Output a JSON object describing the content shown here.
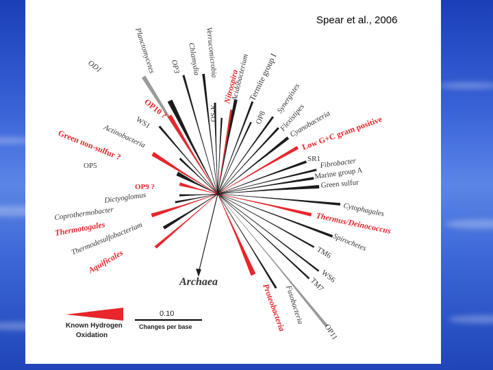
{
  "credit": "Spear et al., 2006",
  "root_label": "Archaea",
  "legend": {
    "hydrogen_label_line1": "Known Hydrogen",
    "hydrogen_label_line2": "Oxidation",
    "scale_value": "0.10",
    "scale_unit": "Changes per base"
  },
  "colors": {
    "hydrogen": "#e8262b",
    "other": "#1c1c1c",
    "gray": "#9a9a9a"
  },
  "taxa": [
    {
      "name": "OD1",
      "color": "gray",
      "style": "italic"
    },
    {
      "name": "Planctomycetes",
      "color": "other",
      "style": "italic"
    },
    {
      "name": "OP3",
      "color": "other",
      "style": "italic"
    },
    {
      "name": "Chlamydia",
      "color": "other",
      "style": "italic"
    },
    {
      "name": "Verrucomicrobia",
      "color": "other",
      "style": "italic"
    },
    {
      "name": "OS-K",
      "color": "other",
      "style": "normal"
    },
    {
      "name": "Nitrospira",
      "color": "hydrogen",
      "style": "bolditalic"
    },
    {
      "name": "Acidobacterium",
      "color": "other",
      "style": "italic"
    },
    {
      "name": "Termite group I",
      "color": "other",
      "style": "normal"
    },
    {
      "name": "OP8",
      "color": "other",
      "style": "normal"
    },
    {
      "name": "Synergistes",
      "color": "other",
      "style": "italic"
    },
    {
      "name": "Flexistipes",
      "color": "other",
      "style": "italic"
    },
    {
      "name": "Cyanobacteria",
      "color": "other",
      "style": "italic"
    },
    {
      "name": "Low G+C gram positive",
      "color": "hydrogen",
      "style": "bold"
    },
    {
      "name": "SR1",
      "color": "other",
      "style": "normal"
    },
    {
      "name": "Fibrobacter",
      "color": "other",
      "style": "italic"
    },
    {
      "name": "Marine group A",
      "color": "other",
      "style": "normal"
    },
    {
      "name": "Green sulfur",
      "color": "other",
      "style": "normal"
    },
    {
      "name": "Cytophagales",
      "color": "other",
      "style": "italic"
    },
    {
      "name": "Thermus/Deinococcus",
      "color": "hydrogen",
      "style": "bolditalic"
    },
    {
      "name": "Spirochetes",
      "color": "other",
      "style": "italic"
    },
    {
      "name": "TM6",
      "color": "other",
      "style": "normal"
    },
    {
      "name": "WS6",
      "color": "other",
      "style": "normal"
    },
    {
      "name": "TM7",
      "color": "other",
      "style": "normal"
    },
    {
      "name": "OP11",
      "color": "gray",
      "style": "normal"
    },
    {
      "name": "Fusobacteria",
      "color": "other",
      "style": "italic"
    },
    {
      "name": "Proteobacteria",
      "color": "hydrogen",
      "style": "bolditalic"
    },
    {
      "name": "Aquificales",
      "color": "hydrogen",
      "style": "bolditalic"
    },
    {
      "name": "Thermodesulfobacterium",
      "color": "other",
      "style": "italic"
    },
    {
      "name": "Thermotogales",
      "color": "hydrogen",
      "style": "bolditalic"
    },
    {
      "name": "Coprothermobacter",
      "color": "other",
      "style": "italic"
    },
    {
      "name": "Dictyoglomus",
      "color": "other",
      "style": "italic"
    },
    {
      "name": "OP9 ?",
      "color": "hydrogen",
      "style": "bold"
    },
    {
      "name": "OP5",
      "color": "other",
      "style": "normal"
    },
    {
      "name": "Green non-sulfur ?",
      "color": "hydrogen",
      "style": "bold"
    },
    {
      "name": "Actinobacteria",
      "color": "other",
      "style": "italic"
    },
    {
      "name": "WS1",
      "color": "other",
      "style": "normal"
    },
    {
      "name": "OP10 ?",
      "color": "hydrogen",
      "style": "bold"
    }
  ]
}
